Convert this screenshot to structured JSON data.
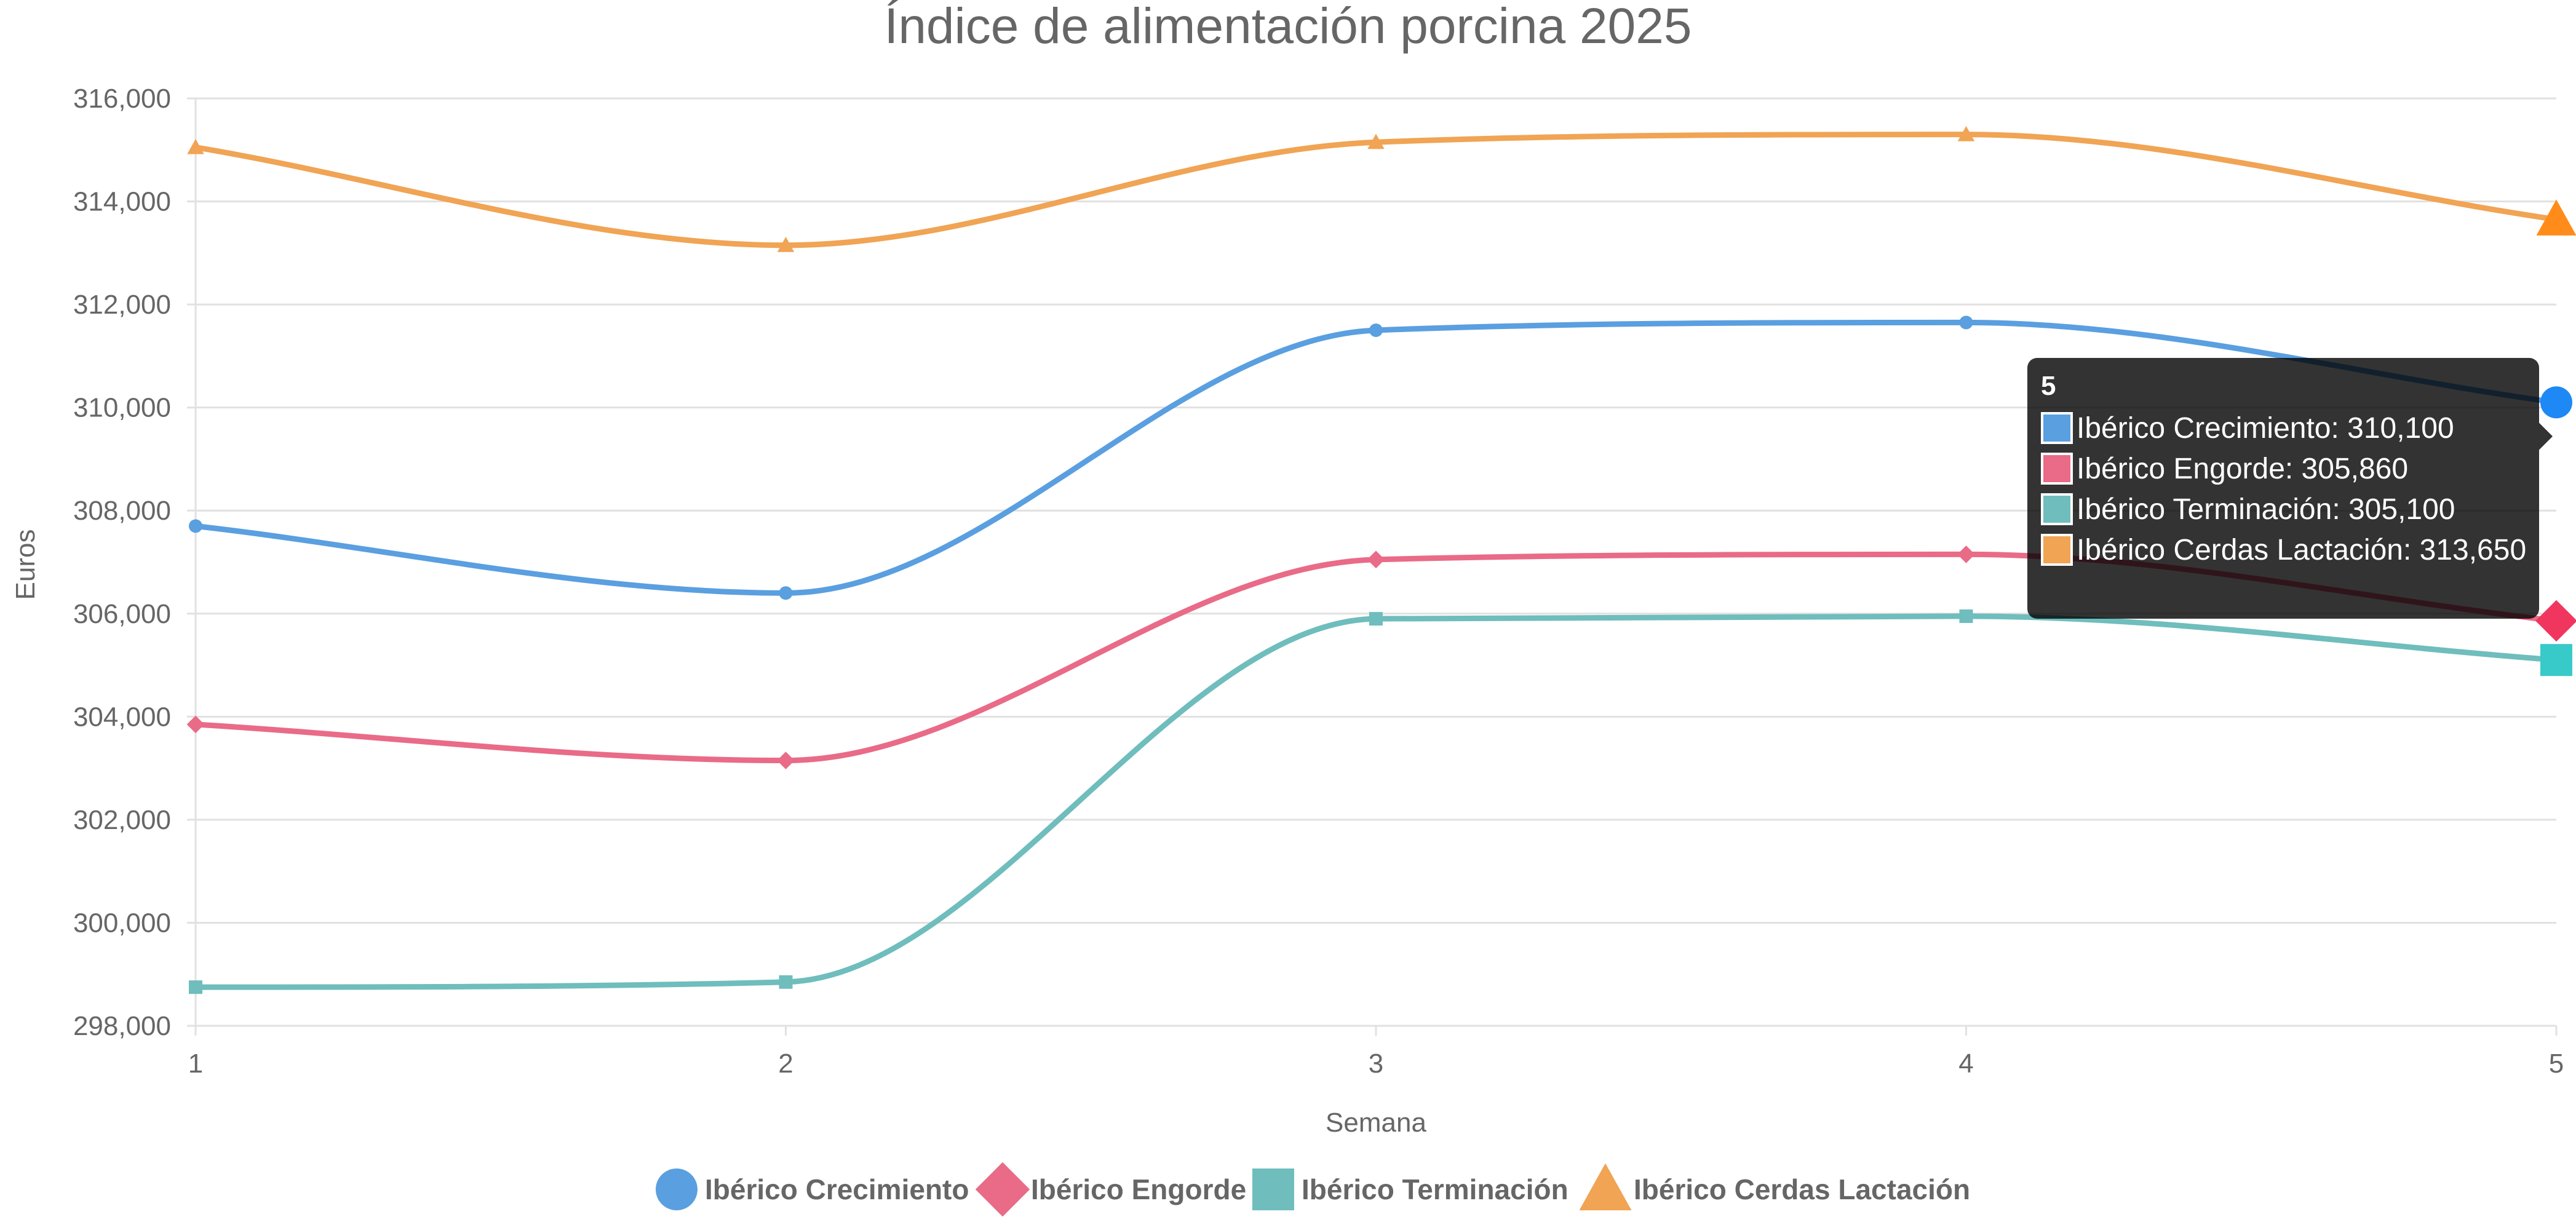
{
  "chart_data": {
    "type": "line",
    "title": "Índice de alimentación porcina 2025",
    "xlabel": "Semana",
    "ylabel": "Euros",
    "x": [
      1,
      2,
      3,
      4,
      5
    ],
    "x_tick_labels": [
      "1",
      "2",
      "3",
      "4",
      "5"
    ],
    "ylim": [
      298000,
      316000
    ],
    "y_ticks": [
      298000,
      300000,
      302000,
      304000,
      306000,
      308000,
      310000,
      312000,
      314000,
      316000
    ],
    "y_tick_labels": [
      "298,000",
      "300,000",
      "302,000",
      "304,000",
      "306,000",
      "308,000",
      "310,000",
      "312,000",
      "314,000",
      "316,000"
    ],
    "grid": true,
    "legend_position": "bottom",
    "series": [
      {
        "name": "Ibérico Crecimiento",
        "color": "#5a9fe0",
        "marker": "circle",
        "values": [
          307700,
          306400,
          311500,
          311650,
          310100
        ]
      },
      {
        "name": "Ibérico Engorde",
        "color": "#e96b87",
        "marker": "diamond",
        "values": [
          303850,
          303150,
          307050,
          307150,
          305860
        ]
      },
      {
        "name": "Ibérico Terminación",
        "color": "#6fbdbd",
        "marker": "square",
        "values": [
          298750,
          298850,
          305900,
          305950,
          305100
        ]
      },
      {
        "name": "Ibérico Cerdas Lactación",
        "color": "#f0a454",
        "marker": "triangle",
        "values": [
          315050,
          313150,
          315150,
          315300,
          313650
        ]
      }
    ],
    "tooltip": {
      "title": "5",
      "lines": [
        "Ibérico Crecimiento: 310,100",
        "Ibérico Engorde: 305,860",
        "Ibérico Terminación: 305,100",
        "Ibérico Cerdas Lactación: 313,650"
      ]
    }
  }
}
